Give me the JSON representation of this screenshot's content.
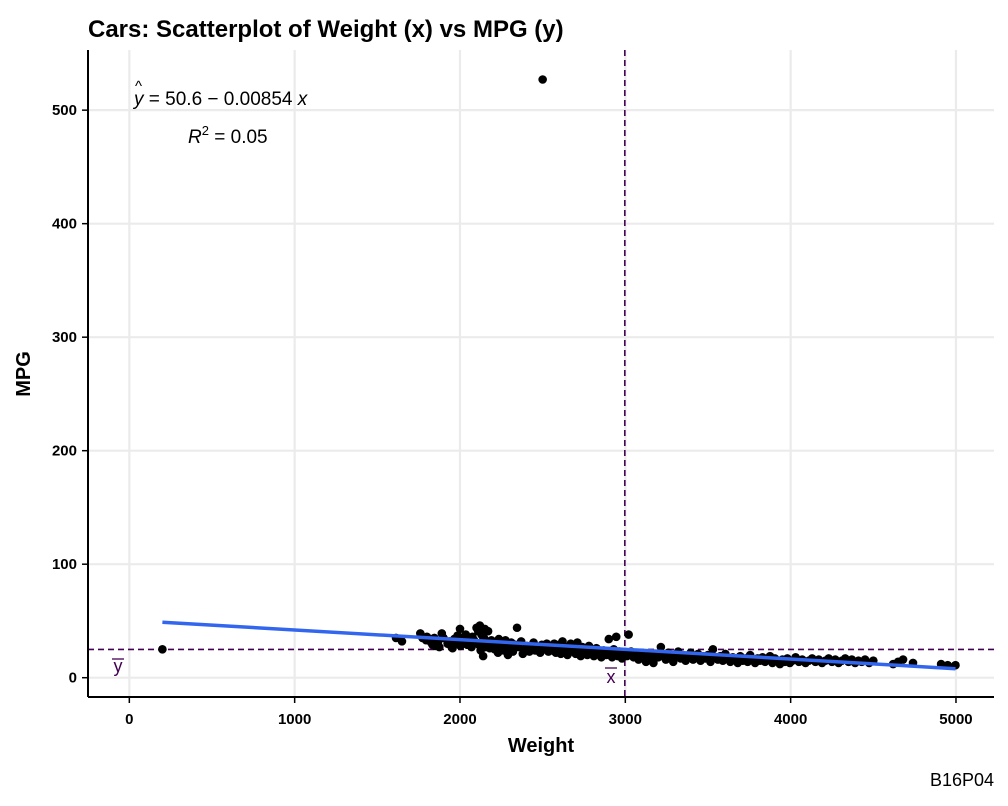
{
  "chart_data": {
    "type": "scatter",
    "title": "Cars: Scatterplot of Weight (x) vs MPG (y)",
    "xlabel": "Weight",
    "ylabel": "MPG",
    "caption": "B16P04",
    "xlim": [
      -250,
      5230
    ],
    "ylim": [
      -17,
      553
    ],
    "xticks": [
      0,
      1000,
      2000,
      3000,
      4000,
      5000
    ],
    "yticks": [
      0,
      100,
      200,
      300,
      400,
      500
    ],
    "grid": true,
    "regression": {
      "intercept": 50.6,
      "slope": -0.00854,
      "x_range": [
        200,
        4997
      ],
      "equation_lhs": "y",
      "equation_rhs": " = 50.6 − 0.00854 ",
      "equation_var": "x",
      "r2_label": "R",
      "r2_sup": "2",
      "r2_value": " = 0.05",
      "color": "#3366ee"
    },
    "mean_x": 2997,
    "mean_y": 24.9,
    "mean_x_label": "x",
    "mean_y_label": "y",
    "mean_line_color": "#440154",
    "point_color": "#000000",
    "points": [
      [
        200,
        25
      ],
      [
        2500,
        527
      ],
      [
        1613,
        35
      ],
      [
        1649,
        32
      ],
      [
        1760,
        39
      ],
      [
        1773,
        35
      ],
      [
        1795,
        33
      ],
      [
        1800,
        36
      ],
      [
        1825,
        31
      ],
      [
        1834,
        29
      ],
      [
        1845,
        35
      ],
      [
        1850,
        28
      ],
      [
        1867,
        31
      ],
      [
        1875,
        27
      ],
      [
        1890,
        39
      ],
      [
        1900,
        35
      ],
      [
        1925,
        30
      ],
      [
        1937,
        32
      ],
      [
        1940,
        29
      ],
      [
        1950,
        27
      ],
      [
        1955,
        26
      ],
      [
        1965,
        34
      ],
      [
        1975,
        33
      ],
      [
        1985,
        37
      ],
      [
        1990,
        30
      ],
      [
        2000,
        43
      ],
      [
        2003,
        28
      ],
      [
        2020,
        31
      ],
      [
        2025,
        36
      ],
      [
        2035,
        38
      ],
      [
        2045,
        29
      ],
      [
        2050,
        33
      ],
      [
        2065,
        31
      ],
      [
        2070,
        27
      ],
      [
        2075,
        36
      ],
      [
        2085,
        33
      ],
      [
        2100,
        44
      ],
      [
        2110,
        41
      ],
      [
        2115,
        29
      ],
      [
        2120,
        46
      ],
      [
        2125,
        24
      ],
      [
        2130,
        38
      ],
      [
        2135,
        32
      ],
      [
        2140,
        19
      ],
      [
        2145,
        35
      ],
      [
        2150,
        43
      ],
      [
        2155,
        27
      ],
      [
        2160,
        30
      ],
      [
        2170,
        41
      ],
      [
        2180,
        26
      ],
      [
        2190,
        33
      ],
      [
        2200,
        29
      ],
      [
        2210,
        25
      ],
      [
        2220,
        31
      ],
      [
        2230,
        22
      ],
      [
        2235,
        34
      ],
      [
        2245,
        27
      ],
      [
        2255,
        30
      ],
      [
        2265,
        24
      ],
      [
        2275,
        33
      ],
      [
        2285,
        28
      ],
      [
        2290,
        20
      ],
      [
        2300,
        26
      ],
      [
        2310,
        31
      ],
      [
        2320,
        23
      ],
      [
        2335,
        29
      ],
      [
        2345,
        44
      ],
      [
        2355,
        27
      ],
      [
        2370,
        32
      ],
      [
        2380,
        21
      ],
      [
        2395,
        25
      ],
      [
        2405,
        28
      ],
      [
        2420,
        23
      ],
      [
        2430,
        26
      ],
      [
        2445,
        31
      ],
      [
        2455,
        24
      ],
      [
        2470,
        27
      ],
      [
        2485,
        22
      ],
      [
        2495,
        29
      ],
      [
        2510,
        25
      ],
      [
        2525,
        30
      ],
      [
        2535,
        23
      ],
      [
        2545,
        27
      ],
      [
        2560,
        24
      ],
      [
        2570,
        30
      ],
      [
        2580,
        22
      ],
      [
        2590,
        26
      ],
      [
        2600,
        29
      ],
      [
        2610,
        21
      ],
      [
        2620,
        32
      ],
      [
        2630,
        24
      ],
      [
        2640,
        27
      ],
      [
        2650,
        20
      ],
      [
        2660,
        25
      ],
      [
        2670,
        30
      ],
      [
        2680,
        23
      ],
      [
        2690,
        26
      ],
      [
        2700,
        21
      ],
      [
        2710,
        31
      ],
      [
        2720,
        24
      ],
      [
        2730,
        19
      ],
      [
        2740,
        27
      ],
      [
        2750,
        22
      ],
      [
        2760,
        25
      ],
      [
        2770,
        20
      ],
      [
        2780,
        28
      ],
      [
        2795,
        23
      ],
      [
        2810,
        19
      ],
      [
        2825,
        26
      ],
      [
        2840,
        21
      ],
      [
        2855,
        18
      ],
      [
        2870,
        24
      ],
      [
        2885,
        20
      ],
      [
        2900,
        34
      ],
      [
        2910,
        22
      ],
      [
        2920,
        18
      ],
      [
        2930,
        25
      ],
      [
        2945,
        36
      ],
      [
        2955,
        19
      ],
      [
        2965,
        23
      ],
      [
        2980,
        17
      ],
      [
        2995,
        21
      ],
      [
        3010,
        19
      ],
      [
        3020,
        38
      ],
      [
        3035,
        23
      ],
      [
        3050,
        18
      ],
      [
        3065,
        21
      ],
      [
        3080,
        16
      ],
      [
        3095,
        22
      ],
      [
        3110,
        19
      ],
      [
        3125,
        14
      ],
      [
        3140,
        20
      ],
      [
        3155,
        17
      ],
      [
        3170,
        13
      ],
      [
        3185,
        21
      ],
      [
        3200,
        18
      ],
      [
        3215,
        27
      ],
      [
        3230,
        20
      ],
      [
        3245,
        16
      ],
      [
        3260,
        22
      ],
      [
        3275,
        18
      ],
      [
        3290,
        14
      ],
      [
        3305,
        19
      ],
      [
        3320,
        23
      ],
      [
        3335,
        17
      ],
      [
        3350,
        20
      ],
      [
        3365,
        15
      ],
      [
        3380,
        19
      ],
      [
        3395,
        22
      ],
      [
        3410,
        16
      ],
      [
        3425,
        18
      ],
      [
        3440,
        21
      ],
      [
        3455,
        15
      ],
      [
        3470,
        19
      ],
      [
        3485,
        17
      ],
      [
        3500,
        20
      ],
      [
        3515,
        14
      ],
      [
        3530,
        25
      ],
      [
        3545,
        18
      ],
      [
        3560,
        16
      ],
      [
        3575,
        19
      ],
      [
        3590,
        15
      ],
      [
        3605,
        21
      ],
      [
        3620,
        17
      ],
      [
        3635,
        14
      ],
      [
        3650,
        18
      ],
      [
        3665,
        16
      ],
      [
        3680,
        13
      ],
      [
        3695,
        19
      ],
      [
        3710,
        15
      ],
      [
        3725,
        17
      ],
      [
        3740,
        14
      ],
      [
        3755,
        20
      ],
      [
        3770,
        16
      ],
      [
        3785,
        13
      ],
      [
        3800,
        17
      ],
      [
        3815,
        15
      ],
      [
        3830,
        18
      ],
      [
        3845,
        14
      ],
      [
        3860,
        16
      ],
      [
        3875,
        19
      ],
      [
        3890,
        13
      ],
      [
        3905,
        17
      ],
      [
        3920,
        15
      ],
      [
        3935,
        12
      ],
      [
        3950,
        16
      ],
      [
        3965,
        14
      ],
      [
        3980,
        17
      ],
      [
        3995,
        13
      ],
      [
        4010,
        15
      ],
      [
        4030,
        18
      ],
      [
        4050,
        14
      ],
      [
        4070,
        16
      ],
      [
        4090,
        13
      ],
      [
        4110,
        15
      ],
      [
        4130,
        17
      ],
      [
        4150,
        14
      ],
      [
        4170,
        16
      ],
      [
        4190,
        13
      ],
      [
        4210,
        15
      ],
      [
        4230,
        17
      ],
      [
        4250,
        14
      ],
      [
        4270,
        16
      ],
      [
        4290,
        13
      ],
      [
        4310,
        15
      ],
      [
        4330,
        17
      ],
      [
        4350,
        14
      ],
      [
        4370,
        16
      ],
      [
        4390,
        13
      ],
      [
        4410,
        15
      ],
      [
        4430,
        14
      ],
      [
        4450,
        16
      ],
      [
        4475,
        13
      ],
      [
        4500,
        15
      ],
      [
        4620,
        12
      ],
      [
        4650,
        14
      ],
      [
        4680,
        16
      ],
      [
        4740,
        13
      ],
      [
        4910,
        12
      ],
      [
        4950,
        11
      ],
      [
        4997,
        11
      ]
    ]
  }
}
